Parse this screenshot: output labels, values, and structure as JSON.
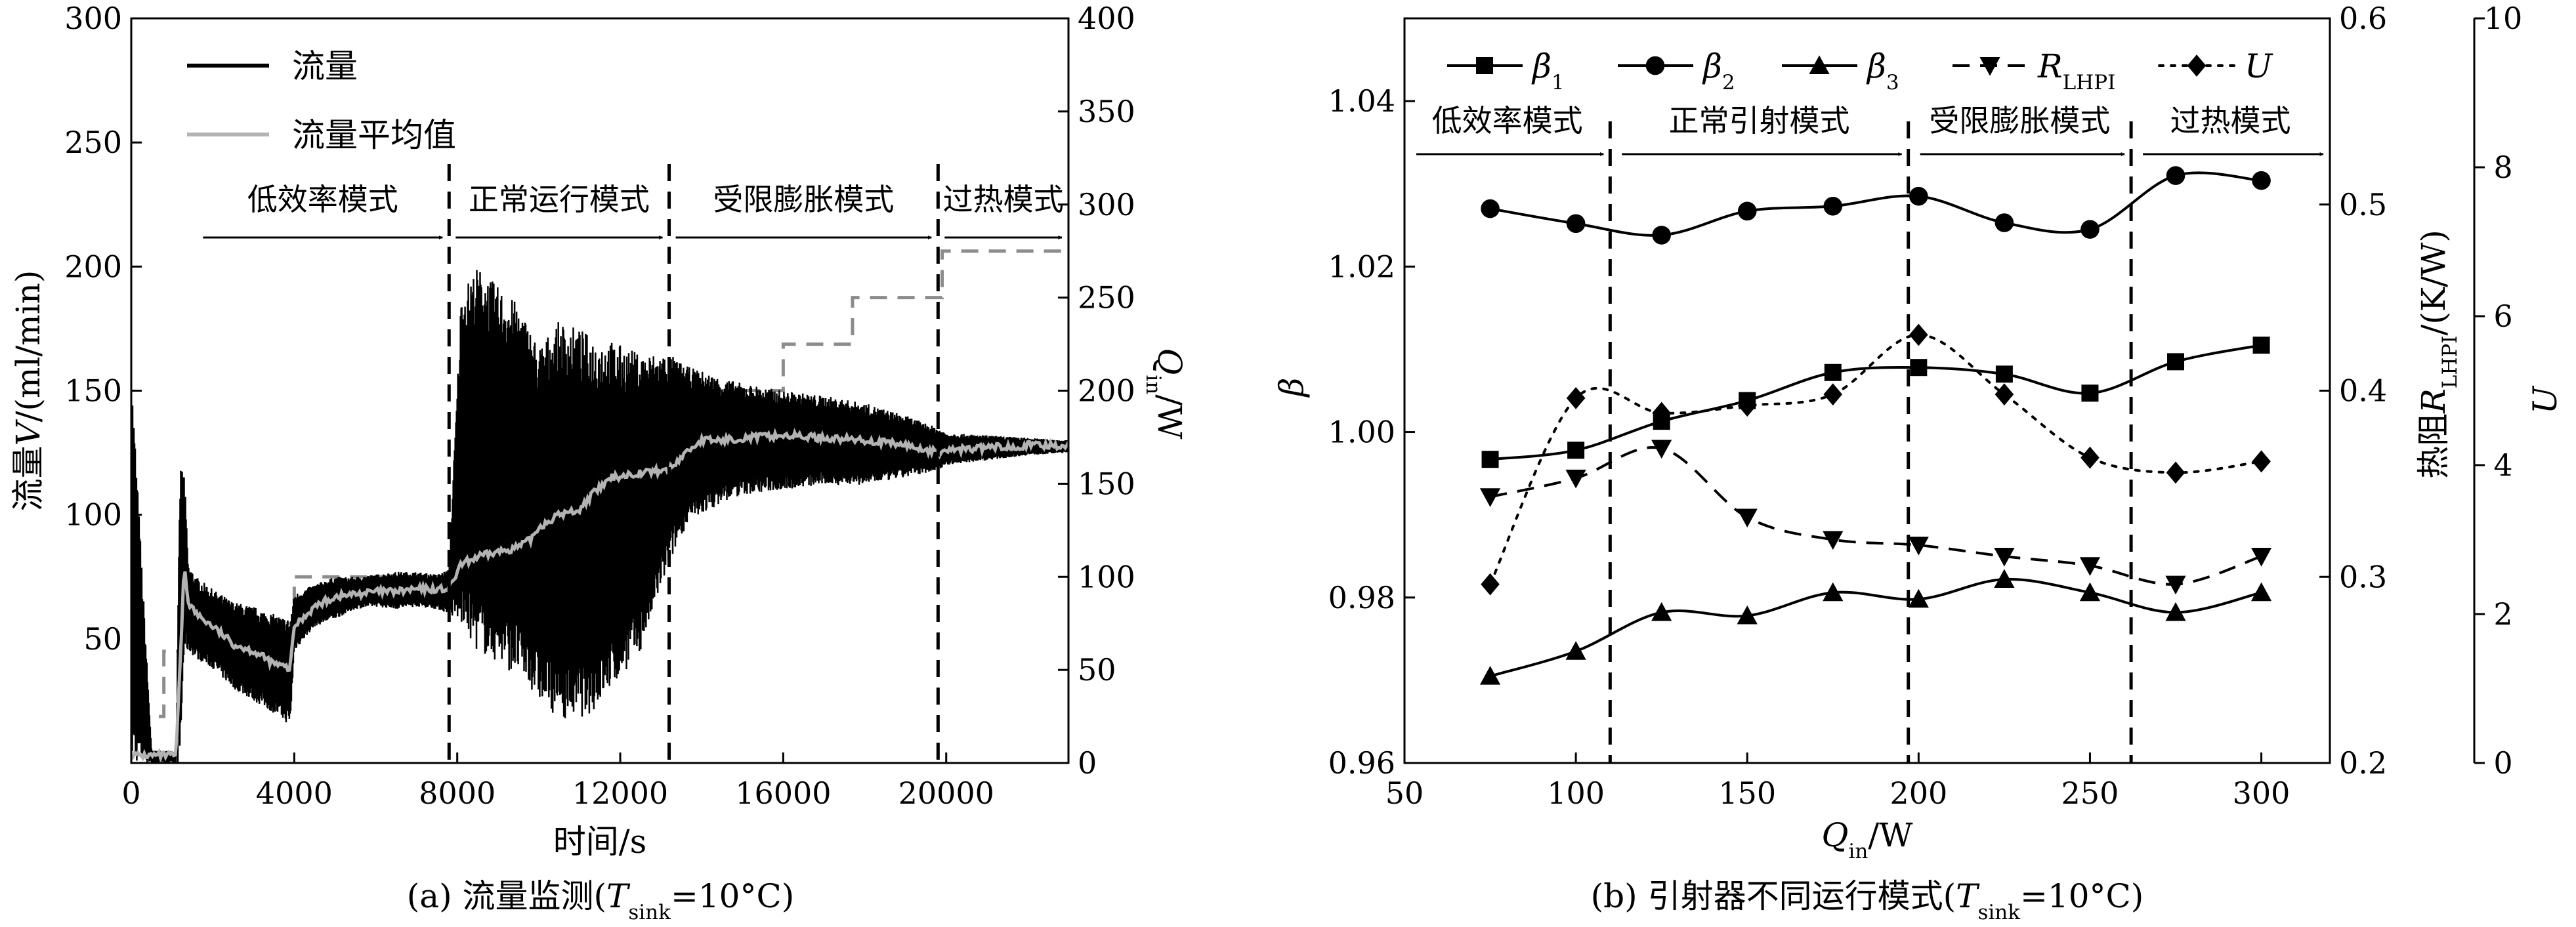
{
  "chart_data": [
    {
      "type": "line",
      "caption": {
        "prefix": "(a) 流量监测(",
        "var": "T",
        "sub": "sink",
        "suffix": "=10°C)"
      },
      "xlabel": "时间/s",
      "ylabel": {
        "prefix": "流量",
        "var": "V",
        "suffix": "/(ml/min)"
      },
      "y2label": {
        "var": "Q",
        "sub": "in",
        "suffix": "/W"
      },
      "xlim": [
        0,
        23000
      ],
      "ylim": [
        0,
        300
      ],
      "y2lim": [
        0,
        400
      ],
      "xticks": [
        "0",
        "4000",
        "8000",
        "12000",
        "16000",
        "20000"
      ],
      "yticks": [
        "50",
        "100",
        "150",
        "200",
        "250",
        "300"
      ],
      "y2ticks": [
        "0",
        "50",
        "100",
        "150",
        "200",
        "250",
        "300",
        "350",
        "400"
      ],
      "legend": [
        {
          "label": "流量",
          "color": "#000000"
        },
        {
          "label": "流量平均值",
          "color": "#b3b3b3"
        }
      ],
      "modes": [
        {
          "label": "低效率模式",
          "x_start": 1600,
          "x_end": 7800
        },
        {
          "label": "正常运行模式",
          "x_start": 7800,
          "x_end": 13200
        },
        {
          "label": "受限膨胀模式",
          "x_start": 13200,
          "x_end": 19800
        },
        {
          "label": "过热模式",
          "x_start": 19800,
          "x_end": 23000
        }
      ],
      "mode_boundaries": [
        7800,
        13200,
        19800
      ],
      "heat_input_steps": {
        "axis": "right",
        "x": [
          0,
          500,
          800,
          1200,
          1500,
          4000,
          8000,
          9800,
          11200,
          13300,
          16000,
          17700,
          19900,
          20900,
          22000
        ],
        "y": [
          25,
          25,
          60,
          75,
          75,
          100,
          125,
          150,
          175,
          200,
          225,
          250,
          275,
          275,
          275
        ]
      },
      "series": [
        {
          "name": "流量平均值",
          "x": [
            0,
            500,
            1000,
            1100,
            1200,
            1300,
            1400,
            1600,
            2000,
            2500,
            3000,
            3500,
            3900,
            4000,
            4500,
            5000,
            5500,
            6000,
            6500,
            7000,
            7500,
            7800,
            8100,
            8500,
            9000,
            9500,
            9800,
            10000,
            10500,
            11000,
            11300,
            11800,
            12500,
            13200,
            13600,
            14000,
            14500,
            15000,
            16000,
            17000,
            18000,
            19000,
            19800,
            20000,
            21000,
            22000,
            23000
          ],
          "y": [
            3,
            3,
            3,
            3,
            40,
            80,
            65,
            60,
            55,
            48,
            45,
            40,
            38,
            55,
            63,
            67,
            68,
            69,
            69,
            70,
            70,
            70,
            80,
            83,
            85,
            87,
            90,
            95,
            100,
            102,
            108,
            115,
            117,
            118,
            125,
            130,
            130,
            131,
            132,
            131,
            130,
            128,
            125,
            126,
            127,
            128,
            128
          ]
        },
        {
          "name": "流量",
          "x": [
            0,
            500,
            1000,
            1100,
            1200,
            1300,
            1400,
            1600,
            2000,
            2500,
            3000,
            3500,
            3900,
            4000,
            4500,
            5000,
            5500,
            6000,
            6500,
            7000,
            7500,
            7800,
            8100,
            8500,
            9000,
            9500,
            9800,
            10000,
            10500,
            11000,
            11300,
            11800,
            12500,
            13200,
            13600,
            14000,
            14500,
            15000,
            16000,
            17000,
            18000,
            19000,
            19800,
            20000,
            21000,
            22000,
            23000
          ],
          "upper": [
            160,
            5,
            5,
            5,
            120,
            118,
            80,
            75,
            70,
            65,
            63,
            60,
            58,
            68,
            72,
            75,
            75,
            76,
            77,
            77,
            76,
            78,
            190,
            200,
            192,
            185,
            175,
            168,
            178,
            175,
            172,
            170,
            165,
            165,
            160,
            158,
            155,
            153,
            150,
            148,
            145,
            140,
            135,
            133,
            132,
            131,
            130
          ],
          "lower": [
            0,
            0,
            0,
            0,
            0,
            45,
            45,
            42,
            38,
            30,
            25,
            20,
            15,
            45,
            55,
            58,
            62,
            63,
            62,
            63,
            62,
            60,
            55,
            45,
            40,
            35,
            30,
            25,
            18,
            18,
            20,
            30,
            45,
            80,
            95,
            100,
            105,
            108,
            110,
            112,
            112,
            115,
            118,
            120,
            122,
            124,
            125
          ]
        }
      ]
    },
    {
      "type": "line",
      "caption": {
        "prefix": "(b) 引射器不同运行模式(",
        "var": "T",
        "sub": "sink",
        "suffix": "=10°C)"
      },
      "xlabel": {
        "var": "Q",
        "sub": "in",
        "suffix": "/W"
      },
      "ylabel": {
        "var": "β"
      },
      "y2label": {
        "prefix": "热阻",
        "var": "R",
        "sub": "LHPI",
        "suffix": "/(K/W)"
      },
      "y3label": {
        "var": "U"
      },
      "xlim": [
        50,
        320
      ],
      "ylim": [
        0.96,
        1.05
      ],
      "y2lim": [
        0.2,
        0.6
      ],
      "y3lim": [
        0,
        10
      ],
      "xticks": [
        "50",
        "100",
        "150",
        "200",
        "250",
        "300"
      ],
      "yticks": [
        "0.96",
        "0.98",
        "1.00",
        "1.02",
        "1.04"
      ],
      "y2ticks": [
        "0.2",
        "0.3",
        "0.4",
        "0.5",
        "0.6"
      ],
      "y3ticks": [
        "0",
        "2",
        "4",
        "6",
        "8",
        "10"
      ],
      "modes": [
        {
          "label": "低效率模式",
          "x_start": 50,
          "x_end": 110
        },
        {
          "label": "正常引射模式",
          "x_start": 110,
          "x_end": 197
        },
        {
          "label": "受限膨胀模式",
          "x_start": 197,
          "x_end": 262
        },
        {
          "label": "过热模式",
          "x_start": 262,
          "x_end": 320
        }
      ],
      "mode_boundaries": [
        110,
        197,
        262
      ],
      "legend_position": "top",
      "series": [
        {
          "name": "β",
          "sub": "1",
          "marker": "square",
          "axis": "left",
          "style": "solid",
          "x": [
            75,
            100,
            125,
            150,
            175,
            200,
            225,
            250,
            275,
            300
          ],
          "y": [
            0.9967,
            0.9978,
            1.0013,
            1.0038,
            1.0072,
            1.0078,
            1.007,
            1.0047,
            1.0085,
            1.0105
          ]
        },
        {
          "name": "β",
          "sub": "2",
          "marker": "circle",
          "axis": "left",
          "style": "solid",
          "x": [
            75,
            100,
            125,
            150,
            175,
            200,
            225,
            250,
            275,
            300
          ],
          "y": [
            1.027,
            1.0252,
            1.0238,
            1.0267,
            1.0273,
            1.0285,
            1.0253,
            1.0245,
            1.031,
            1.0304
          ]
        },
        {
          "name": "β",
          "sub": "3",
          "marker": "triangle",
          "axis": "left",
          "style": "solid",
          "x": [
            75,
            100,
            125,
            150,
            175,
            200,
            225,
            250,
            275,
            300
          ],
          "y": [
            0.9705,
            0.9735,
            0.9782,
            0.9778,
            0.9806,
            0.9798,
            0.9822,
            0.9806,
            0.9782,
            0.9806
          ]
        },
        {
          "name": "R",
          "sub": "LHPI",
          "marker": "triangle-down",
          "axis": "right",
          "style": "dashed",
          "x": [
            75,
            100,
            125,
            150,
            175,
            200,
            225,
            250,
            275,
            300
          ],
          "y": [
            0.343,
            0.353,
            0.369,
            0.332,
            0.32,
            0.317,
            0.311,
            0.306,
            0.296,
            0.311
          ]
        },
        {
          "name": "U",
          "sub": "",
          "marker": "diamond",
          "axis": "right2",
          "style": "dotted",
          "x": [
            75,
            100,
            125,
            150,
            175,
            200,
            225,
            250,
            275,
            300
          ],
          "y": [
            2.4,
            4.9,
            4.7,
            4.8,
            4.95,
            5.75,
            4.95,
            4.1,
            3.9,
            4.05
          ]
        }
      ]
    }
  ]
}
